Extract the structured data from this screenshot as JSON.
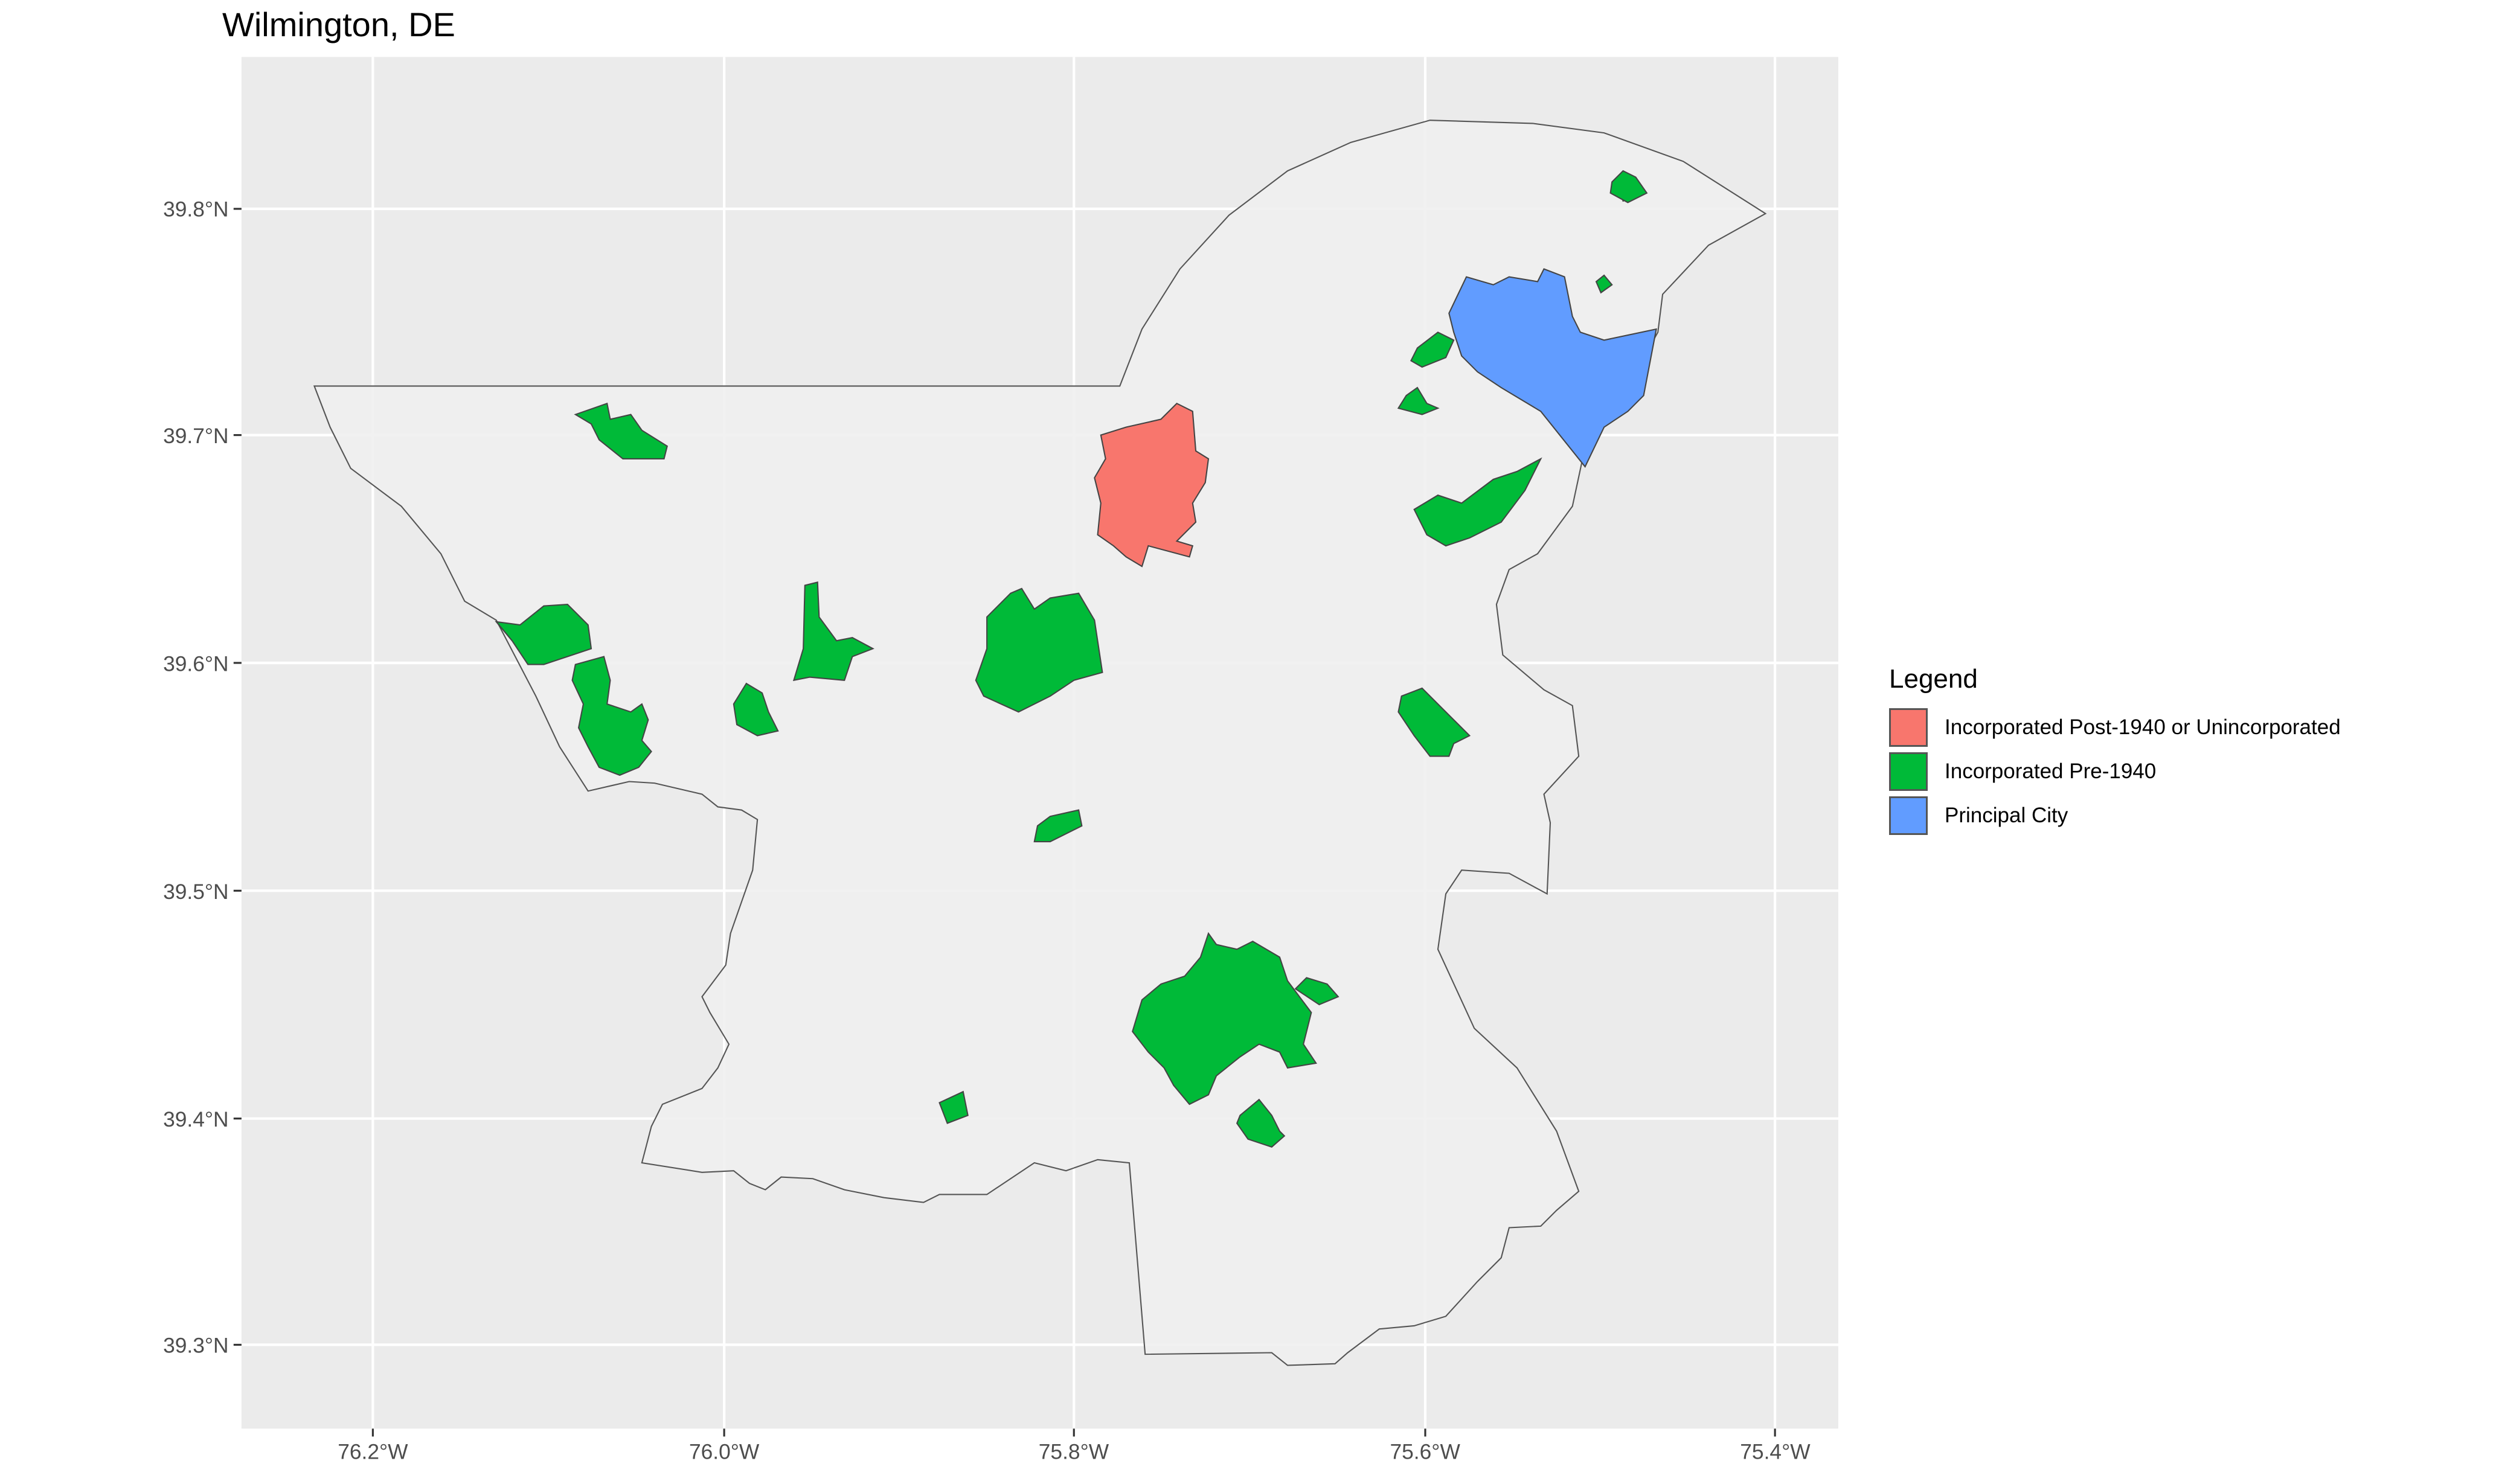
{
  "title": "Wilmington, DE",
  "axes": {
    "x_ticks": [
      "76.2°W",
      "76.0°W",
      "75.8°W",
      "75.6°W",
      "75.4°W"
    ],
    "y_ticks": [
      "39.8°N",
      "39.7°N",
      "39.6°N",
      "39.5°N",
      "39.4°N",
      "39.3°N"
    ]
  },
  "legend": {
    "title": "Legend",
    "items": [
      {
        "label": "Incorporated Post-1940 or Unincorporated",
        "color": "#F8766D"
      },
      {
        "label": "Incorporated Pre-1940",
        "color": "#00BA38"
      },
      {
        "label": "Principal City",
        "color": "#619CFF"
      }
    ]
  },
  "colors": {
    "panel": "#EBEBEB",
    "region_fill": "#EFEFEF",
    "grid": "#FFFFFF",
    "border": "#555555"
  }
}
